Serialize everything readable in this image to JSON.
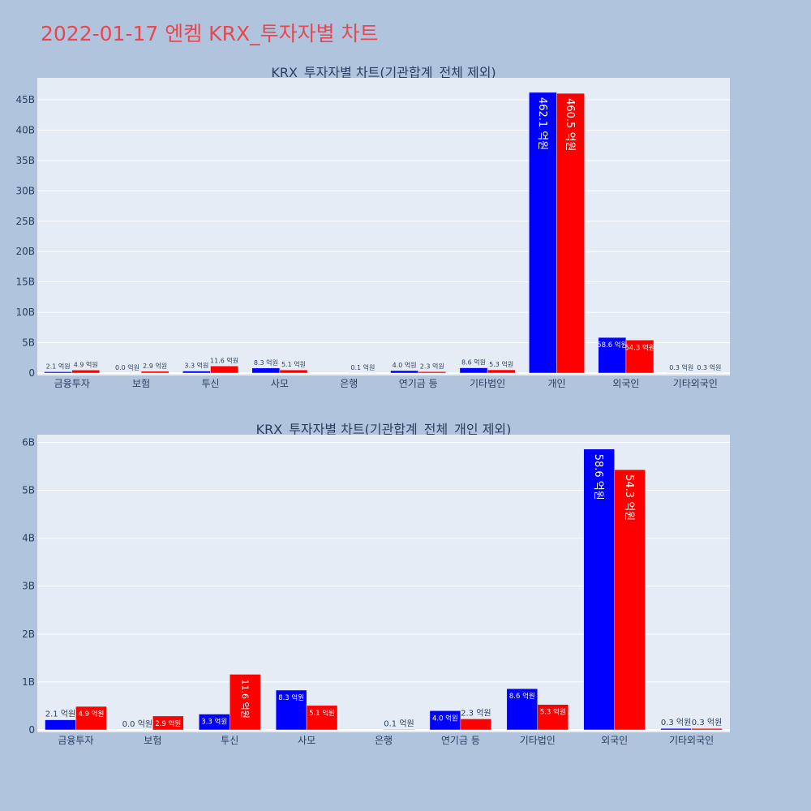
{
  "page": {
    "title": "2022-01-17 엔켐 KRX_투자자별 차트"
  },
  "colors": {
    "background": "#b0c4de",
    "plot_bg": "#e5ecf6",
    "title": "#e8474f",
    "series_a": "#0000ff",
    "series_b": "#ff0000"
  },
  "chart_data": [
    {
      "type": "bar",
      "title": "KRX_투자자별 차트(기관합계_전체 제외)",
      "categories": [
        "금융투자",
        "보험",
        "투신",
        "사모",
        "은행",
        "연기금 등",
        "기타법인",
        "개인",
        "외국인",
        "기타외국인"
      ],
      "series": [
        {
          "color": "#0000ff",
          "values": [
            0.21,
            0.0,
            0.33,
            0.83,
            0.0,
            0.4,
            0.86,
            46.21,
            5.86,
            0.03
          ],
          "labels": [
            "2.1 억원",
            "0.0 억원",
            "3.3 억원",
            "8.3 억원",
            "",
            "4.0 억원",
            "8.6 억원",
            "462.1 억원",
            "58.6 억원",
            "0.3 억원"
          ]
        },
        {
          "color": "#ff0000",
          "values": [
            0.49,
            0.29,
            1.16,
            0.51,
            0.01,
            0.23,
            0.53,
            46.05,
            5.43,
            0.03
          ],
          "labels": [
            "4.9 억원",
            "2.9 억원",
            "11.6 억원",
            "5.1 억원",
            "0.1 억원",
            "2.3 억원",
            "5.3 억원",
            "460.5 억원",
            "54.3 억원",
            "0.3 억원"
          ]
        }
      ],
      "yticks": [
        0,
        5,
        10,
        15,
        20,
        25,
        30,
        35,
        40,
        45
      ],
      "ytick_labels": [
        "0",
        "5B",
        "10B",
        "15B",
        "20B",
        "25B",
        "30B",
        "35B",
        "40B",
        "45B"
      ],
      "ylim": [
        0,
        48.6
      ],
      "grid": true,
      "legend": "none"
    },
    {
      "type": "bar",
      "title": "KRX_투자자별 차트(기관합계_전체_개인 제외)",
      "categories": [
        "금융투자",
        "보험",
        "투신",
        "사모",
        "은행",
        "연기금 등",
        "기타법인",
        "외국인",
        "기타외국인"
      ],
      "series": [
        {
          "color": "#0000ff",
          "values": [
            0.21,
            0.0,
            0.33,
            0.83,
            0.0,
            0.4,
            0.86,
            5.86,
            0.03
          ],
          "labels": [
            "2.1 억원",
            "0.0 억원",
            "3.3 억원",
            "8.3 억원",
            "",
            "4.0 억원",
            "8.6 억원",
            "58.6 억원",
            "0.3 억원"
          ]
        },
        {
          "color": "#ff0000",
          "values": [
            0.49,
            0.29,
            1.16,
            0.51,
            0.01,
            0.23,
            0.53,
            5.43,
            0.03
          ],
          "labels": [
            "4.9 억원",
            "2.9 억원",
            "11.6 억원",
            "5.1 억원",
            "0.1 억원",
            "2.3 억원",
            "5.3 억원",
            "54.3 억원",
            "0.3 억원"
          ]
        }
      ],
      "yticks": [
        0,
        1,
        2,
        3,
        4,
        5,
        6
      ],
      "ytick_labels": [
        "0",
        "1B",
        "2B",
        "3B",
        "4B",
        "5B",
        "6B"
      ],
      "ylim": [
        0,
        6.16
      ],
      "grid": true,
      "legend": "none"
    }
  ]
}
